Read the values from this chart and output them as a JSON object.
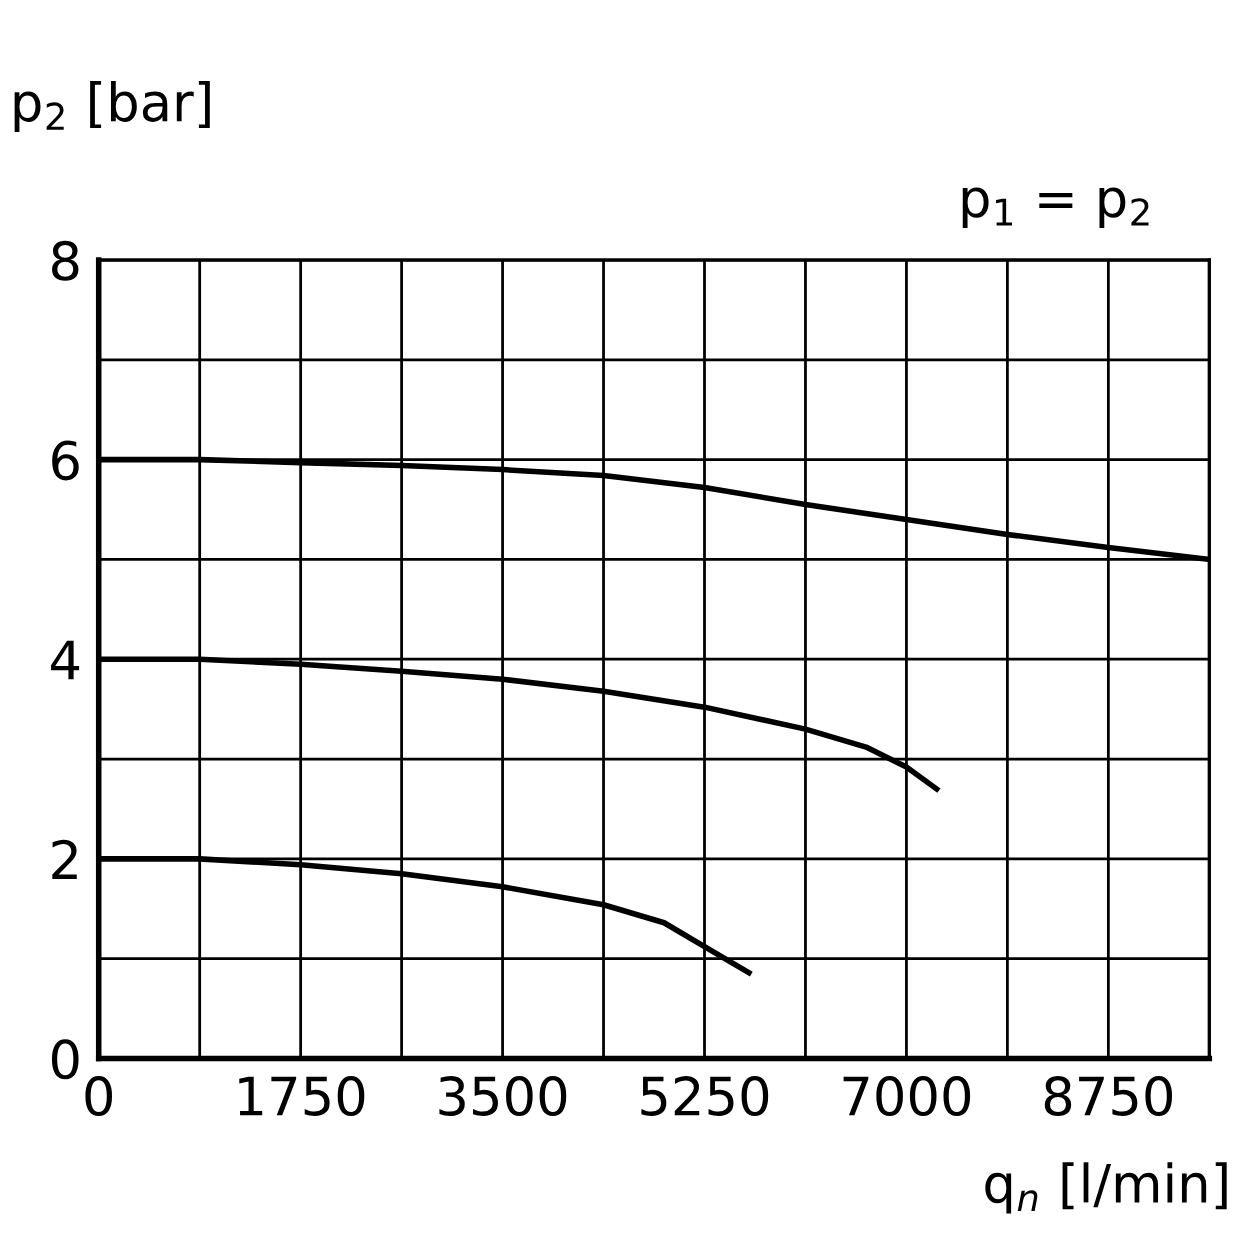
{
  "chart_data": {
    "type": "line",
    "xlabel": "q$_{n}$ [l/min]",
    "ylabel": "p$_{2}$ [bar]",
    "annotations": [
      "p$_{1}$ = p$_{2}$"
    ],
    "series": [
      {
        "color": "#000000",
        "x": [
          0,
          875,
          1750,
          2625,
          3500,
          4375,
          5250,
          6125,
          7000,
          7875,
          8750,
          9625
        ],
        "values": [
          6.0,
          6.0,
          5.97,
          5.94,
          5.9,
          5.84,
          5.72,
          5.55,
          5.4,
          5.25,
          5.12,
          5.0
        ]
      },
      {
        "color": "#000000",
        "x": [
          0,
          875,
          1750,
          2625,
          3500,
          4375,
          5250,
          6125,
          6650,
          7000,
          7262
        ],
        "values": [
          4.0,
          4.0,
          3.95,
          3.88,
          3.8,
          3.68,
          3.52,
          3.3,
          3.12,
          2.92,
          2.7
        ]
      },
      {
        "color": "#000000",
        "x": [
          0,
          875,
          1750,
          2625,
          3500,
          4375,
          4900,
          5250,
          5635
        ],
        "values": [
          2.0,
          2.0,
          1.94,
          1.85,
          1.72,
          1.54,
          1.36,
          1.12,
          0.86
        ]
      }
    ],
    "xlim": [
      0,
      9625
    ],
    "ylim": [
      0,
      8
    ],
    "xticks": [
      0,
      {
        "value": 875,
        "label": null
      },
      1750,
      {
        "value": 2625,
        "label": null
      },
      3500,
      {
        "value": 4375,
        "label": null
      },
      5250,
      {
        "value": 6125,
        "label": null
      },
      7000,
      {
        "value": 7875,
        "label": null
      },
      8750
    ],
    "yticks": [
      0,
      {
        "value": 1,
        "label": null
      },
      2,
      {
        "value": 3,
        "label": null
      },
      4,
      {
        "value": 5,
        "label": null
      },
      6,
      {
        "value": 7,
        "label": null
      },
      8
    ],
    "grid": true,
    "legend": false,
    "marker": "none",
    "line_style": "solid"
  }
}
